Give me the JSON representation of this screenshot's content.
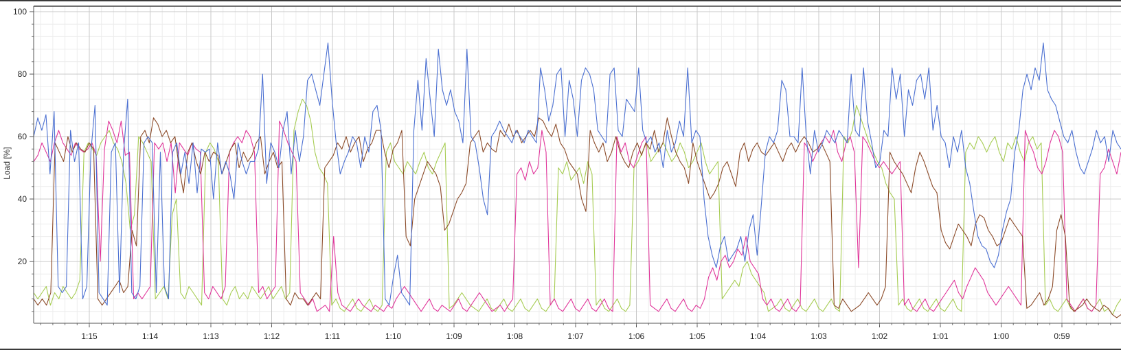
{
  "chart_data": {
    "type": "line",
    "title": "",
    "xlabel": "",
    "ylabel": "Load [%]",
    "ylim": [
      0,
      100
    ],
    "x_ticks": [
      "1:15",
      "1:14",
      "1:13",
      "1:12",
      "1:11",
      "1:10",
      "1:09",
      "1:08",
      "1:07",
      "1:06",
      "1:05",
      "1:04",
      "1:03",
      "1:02",
      "1:01",
      "1:00",
      "0:59"
    ],
    "y_ticks": [
      20,
      40,
      60,
      80,
      100
    ],
    "x_axis_direction": "time decreasing left to right",
    "grid": true,
    "legend": "none",
    "series": [
      {
        "color": "#4a6fd1",
        "values": [
          60,
          66,
          62,
          67,
          48,
          68,
          12,
          10,
          12,
          62,
          52,
          58,
          8,
          12,
          55,
          70,
          10,
          8,
          6,
          55,
          58,
          10,
          55,
          72,
          10,
          8,
          12,
          58,
          60,
          58,
          10,
          55,
          12,
          8,
          55,
          58,
          48,
          55,
          45,
          58,
          42,
          56,
          55,
          56,
          40,
          58,
          48,
          52,
          48,
          40,
          58,
          52,
          48,
          52,
          52,
          56,
          80,
          45,
          58,
          55,
          50,
          62,
          68,
          48,
          62,
          52,
          60,
          78,
          80,
          75,
          70,
          80,
          90,
          72,
          58,
          48,
          52,
          55,
          60,
          58,
          50,
          60,
          55,
          68,
          70,
          62,
          8,
          6,
          15,
          22,
          10,
          8,
          6,
          62,
          78,
          62,
          85,
          72,
          60,
          88,
          75,
          70,
          75,
          68,
          65,
          58,
          88,
          60,
          58,
          50,
          40,
          35,
          60,
          62,
          65,
          62,
          60,
          58,
          62,
          60,
          58,
          62,
          60,
          58,
          82,
          75,
          65,
          70,
          80,
          82,
          60,
          78,
          72,
          60,
          78,
          82,
          80,
          75,
          62,
          60,
          58,
          80,
          82,
          62,
          60,
          72,
          70,
          68,
          82,
          62,
          58,
          60,
          55,
          58,
          50,
          62,
          55,
          58,
          65,
          60,
          82,
          58,
          62,
          60,
          40,
          28,
          22,
          18,
          25,
          28,
          20,
          22,
          24,
          28,
          20,
          30,
          35,
          22,
          38,
          55,
          60,
          58,
          62,
          78,
          75,
          60,
          60,
          58,
          82,
          60,
          48,
          62,
          55,
          58,
          62,
          60,
          58,
          62,
          60,
          58,
          80,
          62,
          60,
          82,
          65,
          58,
          50,
          52,
          62,
          60,
          82,
          72,
          80,
          60,
          75,
          70,
          78,
          80,
          72,
          82,
          62,
          70,
          60,
          58,
          50,
          60,
          55,
          62,
          50,
          45,
          36,
          28,
          25,
          24,
          20,
          18,
          22,
          30,
          36,
          40,
          55,
          62,
          75,
          80,
          75,
          82,
          78,
          90,
          75,
          72,
          70,
          65,
          60,
          58,
          62,
          55,
          50,
          48,
          52,
          56,
          62,
          58,
          60,
          52,
          62,
          58,
          56
        ]
      },
      {
        "color": "#8b4a28",
        "values": [
          8,
          6,
          8,
          6,
          10,
          58,
          55,
          52,
          60,
          55,
          58,
          56,
          55,
          58,
          56,
          8,
          6,
          8,
          10,
          12,
          14,
          10,
          12,
          30,
          25,
          60,
          62,
          58,
          66,
          64,
          60,
          62,
          58,
          60,
          50,
          42,
          55,
          58,
          52,
          48,
          55,
          52,
          55,
          54,
          48,
          52,
          56,
          58,
          50,
          55,
          52,
          54,
          58,
          60,
          48,
          52,
          55,
          50,
          52,
          8,
          6,
          10,
          8,
          8,
          6,
          8,
          10,
          8,
          50,
          52,
          54,
          58,
          56,
          60,
          55,
          58,
          60,
          52,
          56,
          58,
          62,
          62,
          55,
          50,
          56,
          58,
          62,
          28,
          25,
          40,
          44,
          48,
          52,
          50,
          48,
          44,
          30,
          32,
          36,
          40,
          42,
          45,
          58,
          60,
          62,
          55,
          58,
          56,
          55,
          62,
          60,
          64,
          60,
          62,
          58,
          60,
          62,
          60,
          66,
          65,
          62,
          60,
          64,
          58,
          56,
          52,
          50,
          48,
          40,
          36,
          62,
          58,
          55,
          58,
          52,
          55,
          60,
          55,
          52,
          50,
          55,
          58,
          54,
          58,
          56,
          62,
          55,
          58,
          66,
          60,
          55,
          52,
          50,
          45,
          58,
          52,
          48,
          44,
          40,
          42,
          45,
          50,
          52,
          48,
          44,
          55,
          58,
          52,
          56,
          58,
          55,
          54,
          56,
          58,
          55,
          52,
          56,
          58,
          55,
          58,
          60,
          58,
          55,
          56,
          58,
          55,
          52,
          6,
          5,
          8,
          6,
          4,
          5,
          6,
          8,
          10,
          8,
          6,
          8,
          12,
          55,
          52,
          50,
          48,
          45,
          42,
          50,
          55,
          52,
          48,
          44,
          42,
          30,
          26,
          24,
          28,
          32,
          30,
          28,
          25,
          32,
          35,
          34,
          30,
          28,
          25,
          26,
          30,
          34,
          32,
          30,
          28,
          5,
          6,
          8,
          10,
          6,
          8,
          12,
          30,
          35,
          28,
          6,
          4,
          5,
          6,
          8,
          6,
          5,
          4,
          6,
          5,
          3,
          2,
          3
        ],
        "legend_name": ""
      },
      {
        "color": "#e0359a",
        "values": [
          52,
          54,
          58,
          55,
          52,
          58,
          62,
          58,
          56,
          54,
          58,
          56,
          55,
          56,
          58,
          54,
          20,
          56,
          65,
          62,
          58,
          65,
          54,
          55,
          8,
          10,
          8,
          10,
          12,
          58,
          56,
          58,
          52,
          58,
          42,
          58,
          56,
          54,
          58,
          56,
          55,
          10,
          8,
          12,
          10,
          8,
          12,
          55,
          58,
          60,
          58,
          62,
          60,
          55,
          10,
          12,
          8,
          10,
          12,
          65,
          62,
          58,
          55,
          52,
          10,
          8,
          6,
          8,
          4,
          5,
          6,
          4,
          28,
          10,
          6,
          5,
          4,
          6,
          8,
          6,
          5,
          4,
          6,
          5,
          4,
          6,
          5,
          8,
          10,
          12,
          10,
          8,
          6,
          4,
          6,
          8,
          5,
          4,
          6,
          5,
          4,
          6,
          8,
          5,
          4,
          6,
          8,
          10,
          8,
          6,
          4,
          5,
          6,
          4,
          6,
          8,
          48,
          50,
          46,
          52,
          48,
          50,
          62,
          55,
          6,
          8,
          5,
          4,
          6,
          8,
          5,
          4,
          6,
          8,
          5,
          4,
          6,
          8,
          5,
          4,
          60,
          55,
          58,
          52,
          50,
          54,
          58,
          60,
          6,
          5,
          4,
          6,
          8,
          5,
          4,
          6,
          8,
          5,
          4,
          6,
          5,
          8,
          15,
          18,
          14,
          20,
          22,
          18,
          20,
          24,
          22,
          28,
          20,
          18,
          16,
          8,
          6,
          8,
          5,
          4,
          6,
          8,
          5,
          4,
          6,
          58,
          56,
          52,
          55,
          58,
          60,
          58,
          62,
          55,
          52,
          58,
          60,
          55,
          18,
          60,
          58,
          55,
          52,
          50,
          52,
          50,
          48,
          50,
          52,
          6,
          8,
          5,
          4,
          6,
          8,
          5,
          4,
          6,
          8,
          10,
          12,
          14,
          10,
          8,
          12,
          15,
          18,
          16,
          14,
          10,
          8,
          6,
          8,
          10,
          12,
          10,
          8,
          6,
          62,
          58,
          55,
          50,
          48,
          52,
          58,
          62,
          60,
          55,
          8,
          6,
          4,
          6,
          8,
          5,
          4,
          6,
          48,
          50,
          56,
          52,
          48,
          55
        ]
      },
      {
        "color": "#a6cc52",
        "values": [
          10,
          8,
          10,
          12,
          6,
          10,
          8,
          12,
          10,
          8,
          10,
          14,
          55,
          58,
          56,
          54,
          58,
          60,
          62,
          58,
          56,
          52,
          45,
          30,
          35,
          60,
          58,
          55,
          52,
          8,
          10,
          12,
          8,
          35,
          40,
          10,
          8,
          12,
          10,
          8,
          6,
          55,
          58,
          56,
          52,
          8,
          6,
          10,
          12,
          8,
          10,
          8,
          12,
          10,
          8,
          10,
          12,
          8,
          10,
          12,
          8,
          10,
          62,
          68,
          72,
          70,
          65,
          55,
          50,
          48,
          45,
          6,
          8,
          5,
          4,
          6,
          8,
          5,
          4,
          6,
          8,
          5,
          4,
          6,
          55,
          58,
          52,
          50,
          48,
          52,
          50,
          48,
          52,
          55,
          50,
          48,
          52,
          55,
          58,
          5,
          6,
          8,
          10,
          8,
          6,
          5,
          4,
          6,
          8,
          5,
          4,
          6,
          8,
          5,
          4,
          6,
          8,
          5,
          4,
          6,
          8,
          5,
          4,
          6,
          8,
          50,
          48,
          52,
          46,
          48,
          50,
          45,
          52,
          48,
          6,
          8,
          5,
          4,
          6,
          8,
          5,
          4,
          6,
          50,
          52,
          55,
          58,
          52,
          54,
          56,
          58,
          55,
          52,
          54,
          58,
          55,
          50,
          52,
          55,
          58,
          52,
          48,
          50,
          52,
          8,
          10,
          12,
          14,
          12,
          18,
          20,
          16,
          14,
          12,
          10,
          4,
          5,
          6,
          8,
          5,
          4,
          6,
          8,
          5,
          4,
          6,
          8,
          5,
          4,
          6,
          8,
          5,
          4,
          60,
          58,
          62,
          70,
          66,
          62,
          58,
          55,
          52,
          50,
          45,
          42,
          40,
          6,
          8,
          5,
          4,
          6,
          8,
          5,
          4,
          6,
          8,
          5,
          4,
          6,
          8,
          5,
          4,
          55,
          58,
          56,
          60,
          58,
          55,
          58,
          60,
          55,
          52,
          58,
          56,
          60,
          55,
          52,
          58,
          60,
          56,
          58,
          6,
          8,
          5,
          4,
          6,
          8,
          5,
          4,
          6,
          8,
          5,
          4,
          6,
          8,
          4,
          5,
          3,
          6,
          8
        ]
      }
    ]
  }
}
